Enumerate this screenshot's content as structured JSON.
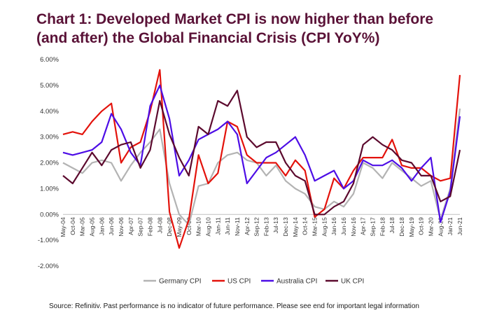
{
  "title_line1": "Chart 1: Developed Market CPI is now higher than before",
  "title_line2": "(and after) the Global Financial Crisis (CPI YoY%)",
  "source": "Source: Refinitiv. Past performance is no indicator of future performance. Please see end for important legal information",
  "chart_data": {
    "type": "line",
    "x": [
      "May-04",
      "Oct-04",
      "Mar-05",
      "Aug-05",
      "Jan-06",
      "Jun-06",
      "Nov-06",
      "Apr-07",
      "Sep-07",
      "Feb-08",
      "Jul-08",
      "Dec-08",
      "May-09",
      "Oct-09",
      "Mar-10",
      "Aug-10",
      "Jan-11",
      "Jun-11",
      "Nov-11",
      "Apr-12",
      "Sep-12",
      "Feb-13",
      "Jul-13",
      "Dec-13",
      "May-14",
      "Oct-14",
      "Mar-15",
      "Aug-15",
      "Jan-16",
      "Jun-16",
      "Nov-16",
      "Apr-17",
      "Sep-17",
      "Feb-18",
      "Jul-18",
      "Dec-18",
      "May-19",
      "Oct-19",
      "Mar-20",
      "Aug-20",
      "Jan-21",
      "Jun-21"
    ],
    "y_tick_labels": [
      "6.00%",
      "5.00%",
      "4.00%",
      "3.00%",
      "2.00%",
      "1.00%",
      "0.00%",
      "-1.00%",
      "-2.00%"
    ],
    "ylim": [
      -2,
      6
    ],
    "grid": false,
    "legend_position": "bottom",
    "series": [
      {
        "name": "Germany CPI",
        "color": "#b3b3b3",
        "values": [
          2.0,
          1.8,
          1.6,
          2.0,
          2.1,
          2.0,
          1.3,
          1.9,
          2.4,
          2.8,
          3.3,
          1.2,
          0.0,
          -0.4,
          1.1,
          1.2,
          2.0,
          2.3,
          2.4,
          2.1,
          2.0,
          1.5,
          1.9,
          1.3,
          1.0,
          0.8,
          0.3,
          0.2,
          0.5,
          0.3,
          0.8,
          2.0,
          1.8,
          1.4,
          2.0,
          1.7,
          1.4,
          1.1,
          1.3,
          -0.2,
          1.0,
          4.1
        ]
      },
      {
        "name": "US CPI",
        "color": "#e3120b",
        "values": [
          3.1,
          3.2,
          3.1,
          3.6,
          4.0,
          4.3,
          2.0,
          2.6,
          2.8,
          4.0,
          5.6,
          0.1,
          -1.3,
          -0.2,
          2.3,
          1.2,
          1.6,
          3.6,
          3.4,
          2.3,
          2.0,
          2.0,
          2.0,
          1.5,
          2.1,
          1.7,
          -0.1,
          0.2,
          1.4,
          1.0,
          1.7,
          2.2,
          2.2,
          2.2,
          2.9,
          1.9,
          1.8,
          1.8,
          1.5,
          1.3,
          1.4,
          5.4
        ]
      },
      {
        "name": "Australia CPI",
        "color": "#4d0de6",
        "values": [
          2.4,
          2.3,
          2.4,
          2.5,
          2.8,
          3.9,
          3.3,
          2.4,
          1.9,
          4.2,
          5.0,
          3.7,
          1.5,
          2.1,
          2.9,
          3.1,
          3.3,
          3.6,
          3.1,
          1.2,
          1.7,
          2.2,
          2.4,
          2.7,
          3.0,
          2.3,
          1.3,
          1.5,
          1.7,
          1.0,
          1.3,
          2.1,
          1.9,
          1.9,
          2.1,
          1.8,
          1.3,
          1.8,
          2.2,
          -0.3,
          0.9,
          3.8
        ]
      },
      {
        "name": "UK CPI",
        "color": "#5c0a2e",
        "values": [
          1.5,
          1.2,
          1.8,
          2.4,
          1.9,
          2.5,
          2.7,
          2.8,
          1.8,
          2.5,
          4.4,
          3.1,
          2.2,
          1.5,
          3.4,
          3.1,
          4.4,
          4.2,
          4.8,
          3.0,
          2.6,
          2.8,
          2.8,
          2.0,
          1.5,
          1.3,
          0.0,
          0.0,
          0.3,
          0.5,
          1.2,
          2.7,
          3.0,
          2.7,
          2.5,
          2.1,
          2.0,
          1.5,
          1.5,
          0.5,
          0.7,
          2.5
        ]
      }
    ]
  }
}
